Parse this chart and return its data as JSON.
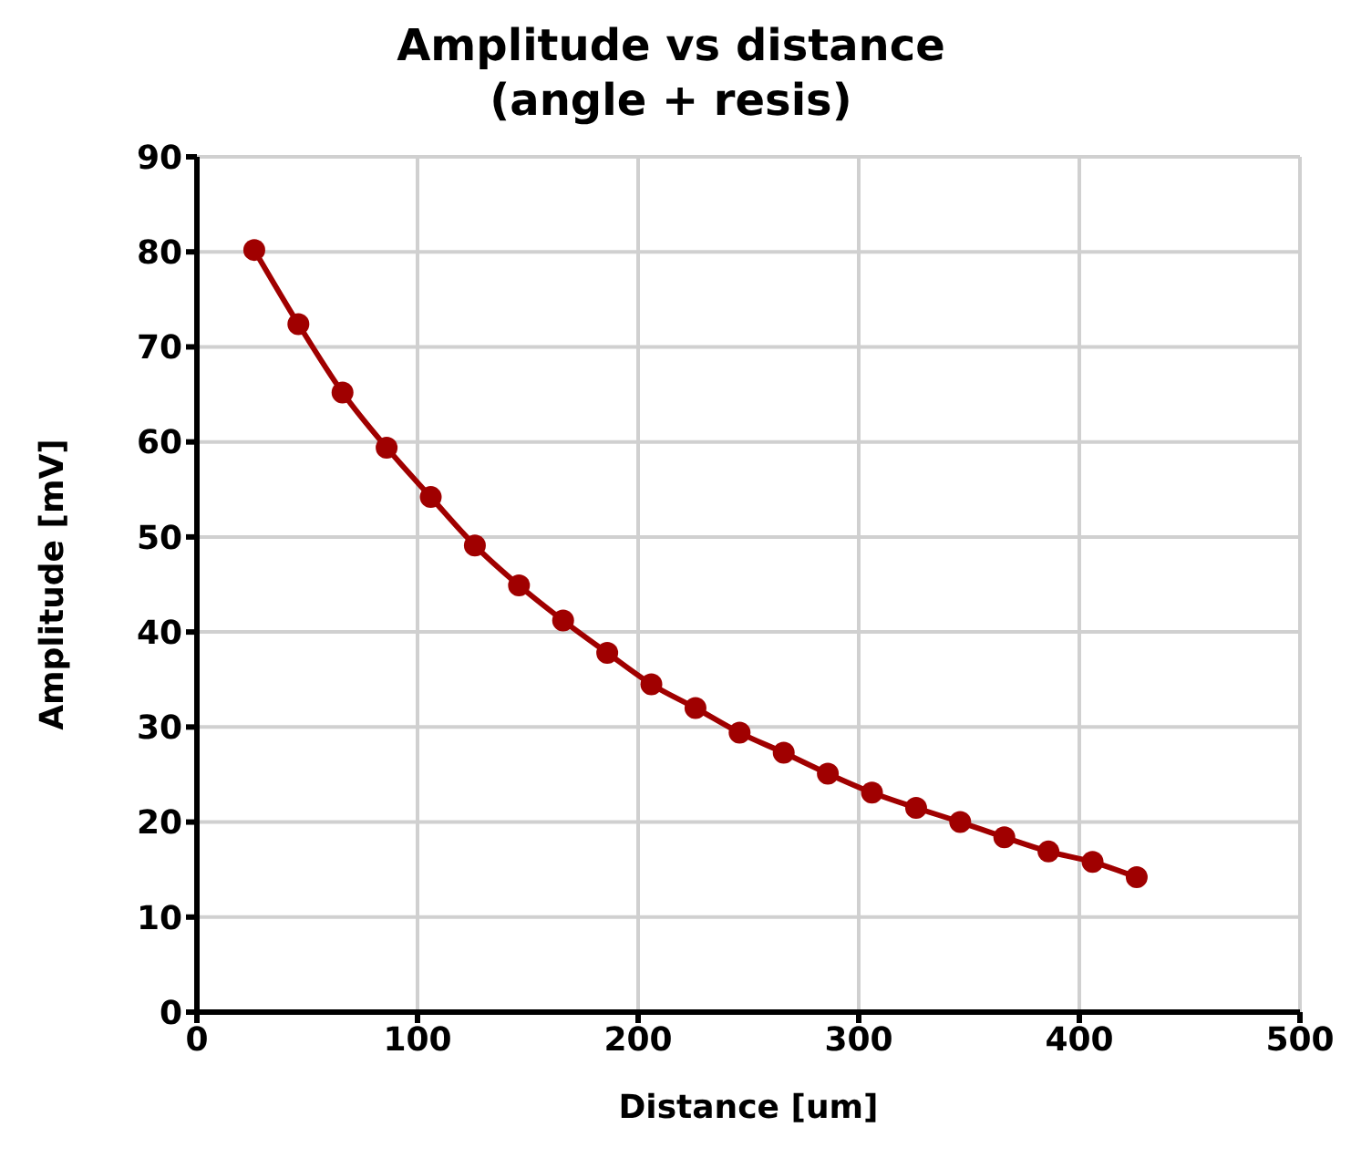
{
  "chart_data": {
    "type": "line",
    "title": "Amplitude vs distance\n(angle + resis)",
    "xlabel": "Distance [um]",
    "ylabel": "Amplitude [mV]",
    "x": [
      26,
      46,
      66,
      86,
      106,
      126,
      146,
      166,
      186,
      206,
      226,
      246,
      266,
      286,
      306,
      326,
      346,
      366,
      386,
      406,
      426
    ],
    "series": [
      {
        "color": "#a00000",
        "values": [
          80.2,
          72.4,
          65.2,
          59.4,
          54.2,
          49.1,
          44.9,
          41.2,
          37.8,
          34.5,
          32.0,
          29.4,
          27.3,
          25.1,
          23.1,
          21.5,
          20.0,
          18.4,
          16.9,
          15.8,
          14.2
        ]
      }
    ],
    "xlim": [
      0,
      500
    ],
    "xticks": [
      0,
      100,
      200,
      300,
      400,
      500
    ],
    "ylim": [
      0,
      90
    ],
    "yticks": [
      0,
      10,
      20,
      30,
      40,
      50,
      60,
      70,
      80,
      90
    ],
    "grid": true,
    "legend": false,
    "marker": "circle",
    "line_style": "solid"
  }
}
